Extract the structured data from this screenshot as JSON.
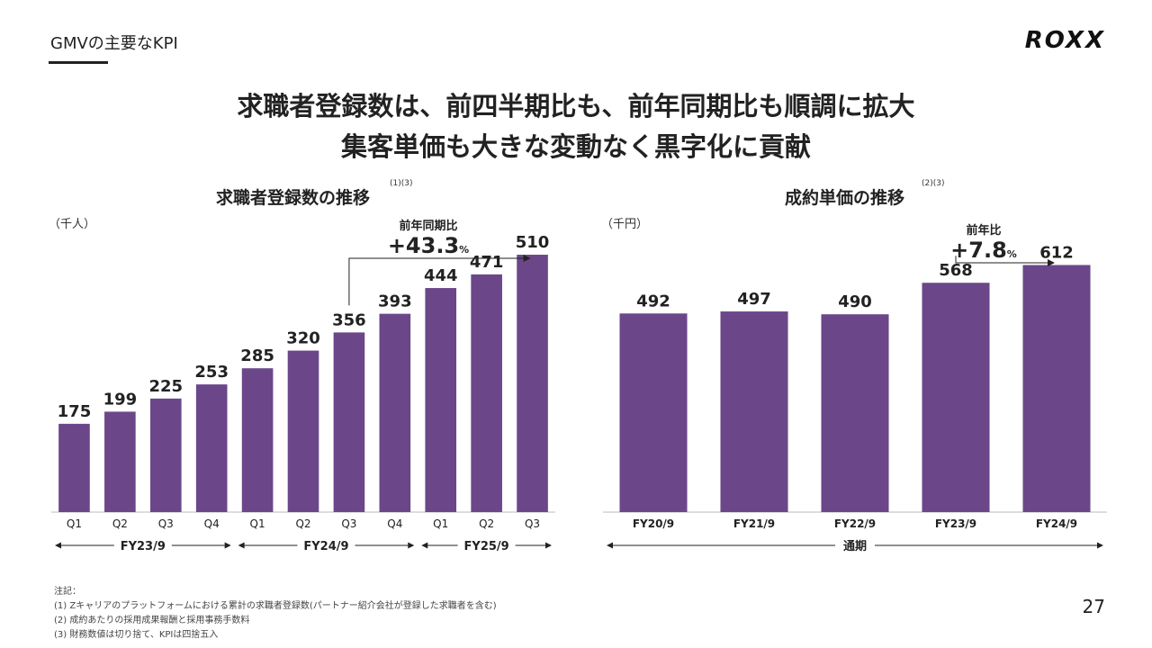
{
  "header": {
    "section_label": "GMVの主要なKPI",
    "logo": "ROXX",
    "headline_1": "求職者登録数は、前四半期比も、前年同期比も順調に拡大",
    "headline_2": "集客単価も大きな変動なく黒字化に貢献"
  },
  "chart_data": [
    {
      "type": "bar",
      "title": "求職者登録数の推移",
      "title_note": "(1)(3)",
      "unit": "（千人）",
      "categories": [
        "Q1",
        "Q2",
        "Q3",
        "Q4",
        "Q1",
        "Q2",
        "Q3",
        "Q4",
        "Q1",
        "Q2",
        "Q3"
      ],
      "values": [
        175,
        199,
        225,
        253,
        285,
        320,
        356,
        393,
        444,
        471,
        510
      ],
      "groups": [
        {
          "label": "FY23/9",
          "start": 0,
          "end": 3
        },
        {
          "label": "FY24/9",
          "start": 4,
          "end": 7
        },
        {
          "label": "FY25/9",
          "start": 8,
          "end": 10
        }
      ],
      "annotation": {
        "label": "前年同期比",
        "value": "+43.3",
        "unit": "%",
        "from": 6,
        "to": 10
      },
      "ylim": [
        0,
        560
      ],
      "color": "#6b478a"
    },
    {
      "type": "bar",
      "title": "成約単価の推移",
      "title_note": "(2)(3)",
      "unit": "（千円）",
      "categories": [
        "FY20/9",
        "FY21/9",
        "FY22/9",
        "FY23/9",
        "FY24/9"
      ],
      "values": [
        492,
        497,
        490,
        568,
        612
      ],
      "groups": [
        {
          "label": "通期",
          "start": 0,
          "end": 4
        }
      ],
      "annotation": {
        "label": "前年比",
        "value": "+7.8",
        "unit": "%",
        "from": 3,
        "to": 4
      },
      "ylim": [
        0,
        700
      ],
      "color": "#6b478a"
    }
  ],
  "footnotes": [
    "注記：",
    "(1) Zキャリアのプラットフォームにおける累計の求職者登録数(パートナー紹介会社が登録した求職者を含む)",
    "(2) 成約あたりの採用成果報酬と採用事務手数料",
    "(3) 財務数値は切り捨て、KPIは四捨五入"
  ],
  "page_number": "27"
}
